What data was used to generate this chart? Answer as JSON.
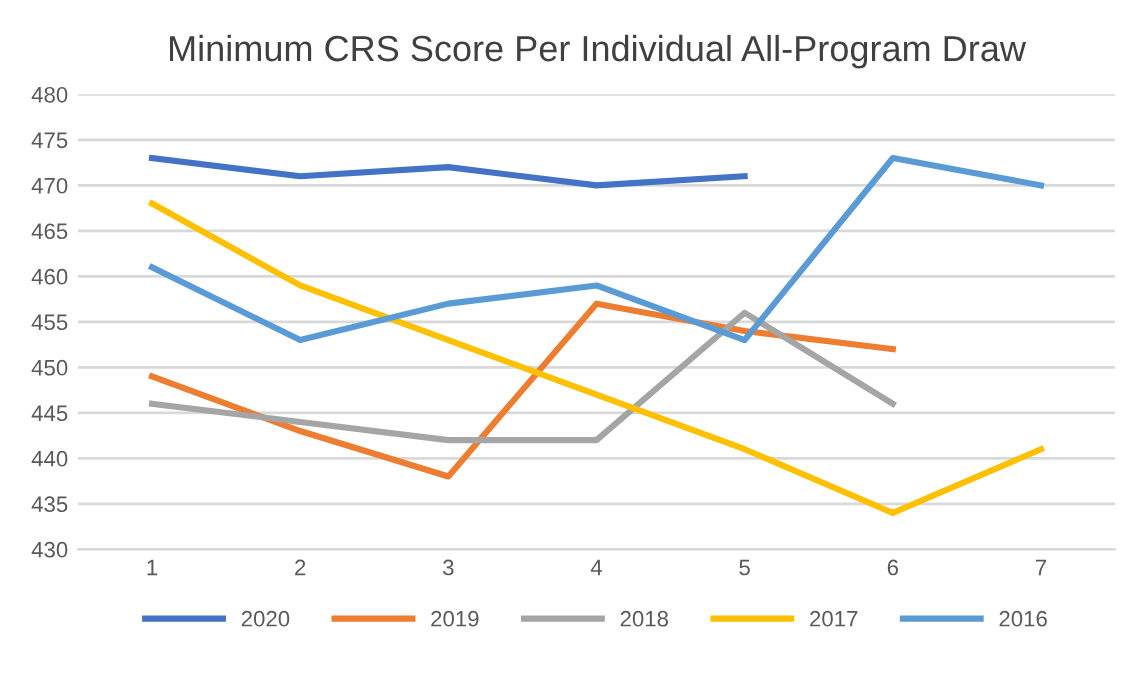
{
  "chart_data": {
    "type": "line",
    "title": "Minimum CRS Score Per Individual All-Program Draw",
    "categories": [
      "1",
      "2",
      "3",
      "4",
      "5",
      "6",
      "7"
    ],
    "series": [
      {
        "name": "2020",
        "color": "#4472c4",
        "values": [
          473,
          471,
          472,
          470,
          471,
          null,
          null
        ]
      },
      {
        "name": "2019",
        "color": "#ed7d31",
        "values": [
          449,
          443,
          438,
          457,
          454,
          452,
          null
        ]
      },
      {
        "name": "2018",
        "color": "#a5a5a5",
        "values": [
          446,
          444,
          442,
          442,
          456,
          446,
          null
        ]
      },
      {
        "name": "2017",
        "color": "#ffc000",
        "values": [
          468,
          459,
          453,
          447,
          441,
          434,
          441
        ]
      },
      {
        "name": "2016",
        "color": "#5b9bd5",
        "values": [
          461,
          453,
          457,
          459,
          453,
          473,
          470
        ]
      }
    ],
    "ylim": [
      430,
      480
    ],
    "yticks": [
      430,
      435,
      440,
      445,
      450,
      455,
      460,
      465,
      470,
      475,
      480
    ],
    "grid": "y",
    "legend": "bottom",
    "marker": "none",
    "line_style": "solid"
  }
}
